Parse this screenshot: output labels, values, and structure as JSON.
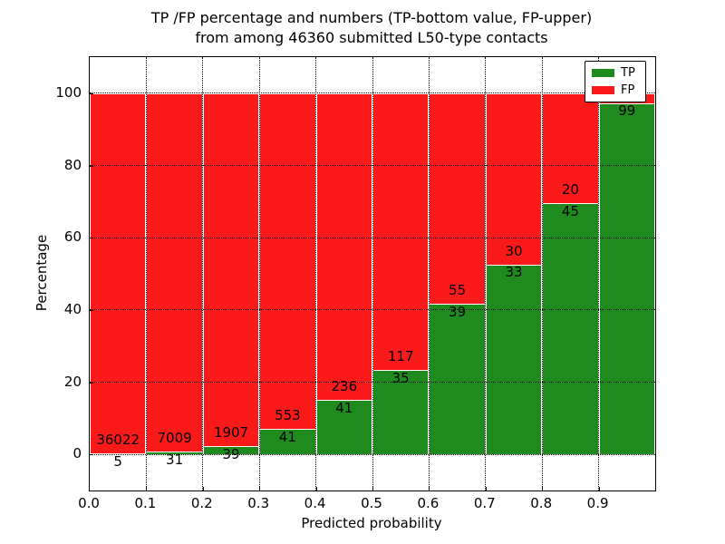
{
  "figure": {
    "title_line1": "TP /FP percentage and numbers (TP-bottom value, FP-upper)",
    "title_line2": "from among 46360 submitted L50-type contacts",
    "background_color": "#ffffff"
  },
  "chart_data": {
    "type": "bar",
    "stacked": true,
    "normalized_to_percent": true,
    "title": "TP /FP percentage and numbers (TP-bottom value, FP-upper) from among 46360 submitted L50-type contacts",
    "xlabel": "Predicted probability",
    "ylabel": "Percentage",
    "xlim": [
      0.0,
      1.0
    ],
    "ylim": [
      -10,
      110
    ],
    "bin_width": 0.1,
    "bin_starts": [
      0.0,
      0.1,
      0.2,
      0.3,
      0.4,
      0.5,
      0.6,
      0.7,
      0.8,
      0.9
    ],
    "xtick_labels": [
      "0.0",
      "0.1",
      "0.2",
      "0.3",
      "0.4",
      "0.5",
      "0.6",
      "0.7",
      "0.8",
      "0.9"
    ],
    "ytick_values": [
      0,
      20,
      40,
      60,
      80,
      100
    ],
    "ytick_labels": [
      "0",
      "20",
      "40",
      "60",
      "80",
      "100"
    ],
    "grid": true,
    "grid_linestyle": "dotted",
    "total_contacts": 46360,
    "series": [
      {
        "name": "TP",
        "color": "#1f8b1f",
        "counts": [
          5,
          31,
          39,
          41,
          41,
          35,
          39,
          33,
          45,
          99
        ]
      },
      {
        "name": "FP",
        "color": "#fb1a1a",
        "counts": [
          36022,
          7009,
          1907,
          553,
          236,
          117,
          55,
          30,
          20,
          3
        ]
      }
    ],
    "tp_percent_of_bin": [
      0.01,
      0.44,
      2.0,
      6.9,
      14.8,
      23.0,
      41.5,
      52.4,
      69.2,
      97.1
    ],
    "bar_value_labels": {
      "tp": [
        "5",
        "31",
        "39",
        "41",
        "41",
        "35",
        "39",
        "33",
        "45",
        "99"
      ],
      "fp": [
        "36022",
        "7009",
        "1907",
        "553",
        "236",
        "117",
        "55",
        "30",
        "20",
        ""
      ]
    },
    "legend": {
      "position": "upper right",
      "entries": [
        {
          "label": "TP",
          "color": "#1f8b1f"
        },
        {
          "label": "FP",
          "color": "#fb1a1a"
        }
      ]
    }
  }
}
